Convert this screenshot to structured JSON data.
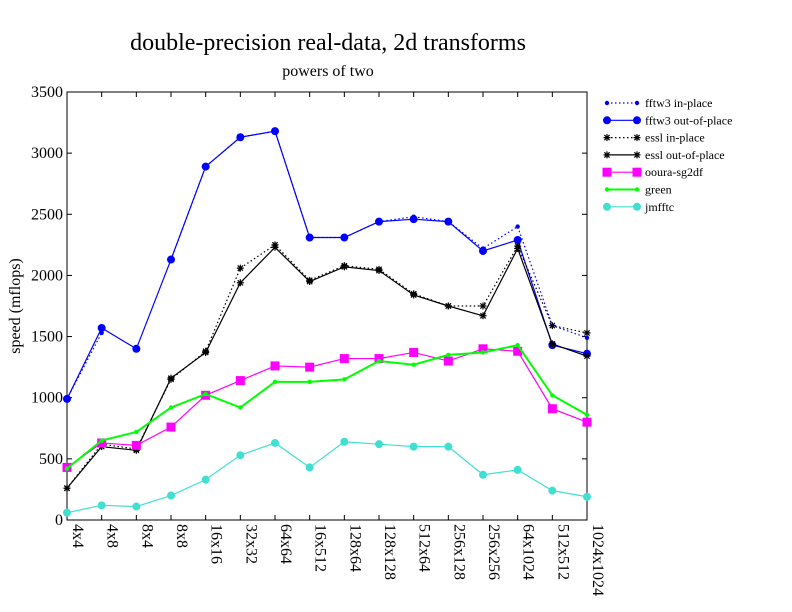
{
  "chart_data": {
    "type": "line",
    "title": "double-precision real-data, 2d transforms",
    "subtitle": "powers of two",
    "xlabel": "",
    "ylabel": "speed (mflops)",
    "ylim": [
      0,
      3500
    ],
    "yticks": [
      0,
      500,
      1000,
      1500,
      2000,
      2500,
      3000,
      3500
    ],
    "grid": false,
    "legend_position": "top-right",
    "categories": [
      "4x4",
      "4x8",
      "8x4",
      "8x8",
      "16x16",
      "32x32",
      "64x64",
      "16x512",
      "128x64",
      "128x128",
      "512x64",
      "256x128",
      "256x256",
      "64x1024",
      "512x512",
      "1024x1024"
    ],
    "series": [
      {
        "name": "fftw3 in-place",
        "color": "#0000ff",
        "dash": "dotted",
        "marker": "small-circle",
        "values": [
          990,
          1530,
          null,
          2130,
          2890,
          3130,
          3180,
          2310,
          2310,
          2440,
          2480,
          2440,
          2220,
          2400,
          1590,
          1490
        ]
      },
      {
        "name": "fftw3 out-of-place",
        "color": "#0000ff",
        "dash": "solid",
        "marker": "circle",
        "values": [
          990,
          1570,
          1400,
          2130,
          2890,
          3130,
          3180,
          2310,
          2310,
          2440,
          2460,
          2440,
          2200,
          2290,
          1430,
          1360
        ]
      },
      {
        "name": "essl in-place",
        "color": "#000000",
        "dash": "dotted",
        "marker": "star",
        "values": [
          260,
          620,
          580,
          1150,
          1380,
          2060,
          2250,
          1960,
          2080,
          2050,
          1850,
          1750,
          1750,
          2240,
          1590,
          1530
        ]
      },
      {
        "name": "essl out-of-place",
        "color": "#000000",
        "dash": "solid",
        "marker": "star",
        "values": [
          260,
          600,
          570,
          1160,
          1370,
          1940,
          2230,
          1950,
          2070,
          2040,
          1840,
          1750,
          1670,
          2220,
          1440,
          1340
        ]
      },
      {
        "name": "ooura-sg2df",
        "color": "#ff00ff",
        "dash": "solid",
        "marker": "square",
        "values": [
          430,
          630,
          610,
          760,
          1020,
          1140,
          1260,
          1250,
          1320,
          1320,
          1370,
          1300,
          1400,
          1380,
          910,
          800
        ]
      },
      {
        "name": "green",
        "color": "#00ff00",
        "dash": "solid",
        "marker": "small-circle",
        "values": [
          420,
          650,
          720,
          920,
          1030,
          920,
          1130,
          1130,
          1150,
          1300,
          1270,
          1350,
          1370,
          1430,
          1020,
          860
        ]
      },
      {
        "name": "jmfftc",
        "color": "#40e0d0",
        "dash": "solid",
        "marker": "circle",
        "values": [
          60,
          120,
          110,
          200,
          330,
          530,
          630,
          430,
          640,
          620,
          600,
          600,
          370,
          410,
          240,
          190
        ]
      }
    ]
  }
}
